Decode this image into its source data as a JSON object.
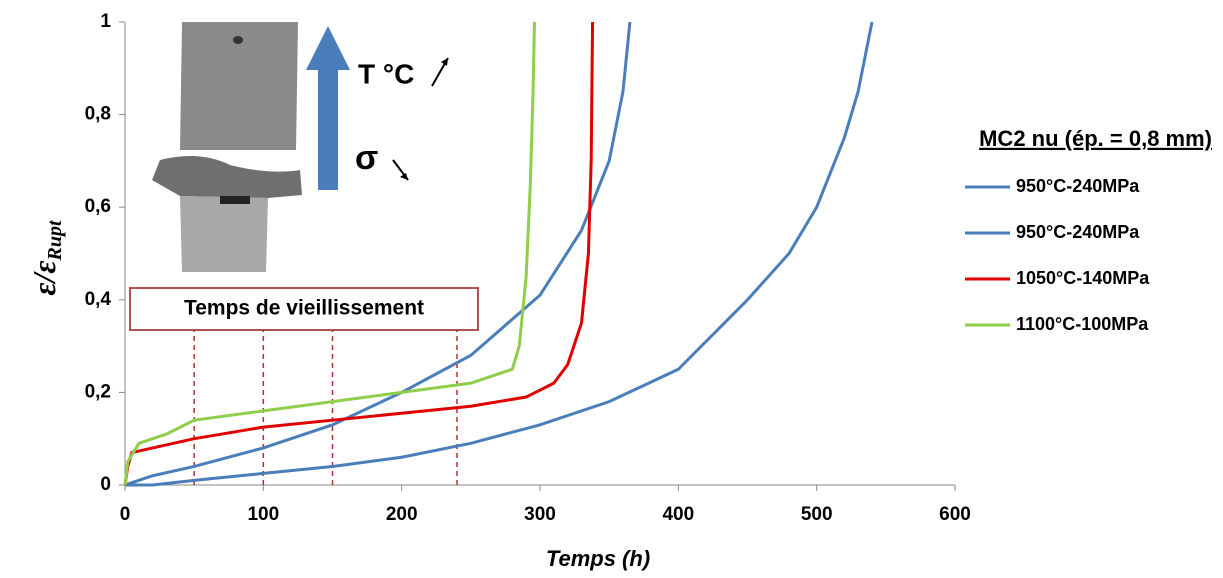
{
  "chart_data": {
    "type": "line",
    "x_label": "Temps (h)",
    "y_label": "ε/ε",
    "y_label_subscript": "Rupt",
    "legend_title": "MC2 nu (ép. = 0,8 mm)",
    "annotation_temperature": "T °C",
    "annotation_stress": "σ",
    "annotation_aging": "Temps de vieillissement",
    "aging_times": [
      50,
      100,
      150,
      240
    ],
    "xlim": [
      0,
      600
    ],
    "xticks": [
      0,
      100,
      200,
      300,
      400,
      500,
      600
    ],
    "ylim": [
      0,
      1
    ],
    "yticks": [
      0,
      {
        "value": 0.2,
        "label": "0,2"
      },
      {
        "value": 0.4,
        "label": "0,4"
      },
      {
        "value": 0.6,
        "label": "0,6"
      },
      {
        "value": 0.8,
        "label": "0,8"
      },
      1
    ],
    "series": [
      {
        "name": "950°C-240MPa",
        "color": "#4a7ebb",
        "x": [
          0,
          20,
          50,
          100,
          150,
          200,
          250,
          300,
          330,
          350,
          360,
          365
        ],
        "values": [
          0,
          0.02,
          0.04,
          0.08,
          0.13,
          0.2,
          0.28,
          0.41,
          0.55,
          0.7,
          0.85,
          1.0
        ]
      },
      {
        "name": "950°C-240MPa",
        "color": "#4a7ebb",
        "x": [
          0,
          20,
          50,
          100,
          150,
          200,
          250,
          300,
          350,
          400,
          450,
          480,
          500,
          520,
          530,
          540
        ],
        "values": [
          0,
          0.0,
          0.01,
          0.025,
          0.04,
          0.06,
          0.09,
          0.13,
          0.18,
          0.25,
          0.4,
          0.5,
          0.6,
          0.75,
          0.85,
          1.0
        ]
      },
      {
        "name": "1050°C-140MPa",
        "color": "#e00000",
        "x": [
          0,
          2,
          5,
          20,
          50,
          100,
          150,
          200,
          250,
          290,
          310,
          320,
          330,
          335,
          337,
          338
        ],
        "values": [
          0,
          0.04,
          0.07,
          0.08,
          0.1,
          0.125,
          0.14,
          0.155,
          0.17,
          0.19,
          0.22,
          0.26,
          0.35,
          0.5,
          0.7,
          1.0
        ]
      },
      {
        "name": "1100°C-100MPa",
        "color": "#8fce4a",
        "x": [
          0,
          2,
          10,
          30,
          50,
          100,
          150,
          200,
          250,
          280,
          285,
          290,
          293,
          295,
          296
        ],
        "values": [
          0,
          0.05,
          0.09,
          0.11,
          0.14,
          0.16,
          0.18,
          0.2,
          0.22,
          0.25,
          0.3,
          0.45,
          0.65,
          0.85,
          1.0
        ]
      }
    ]
  }
}
